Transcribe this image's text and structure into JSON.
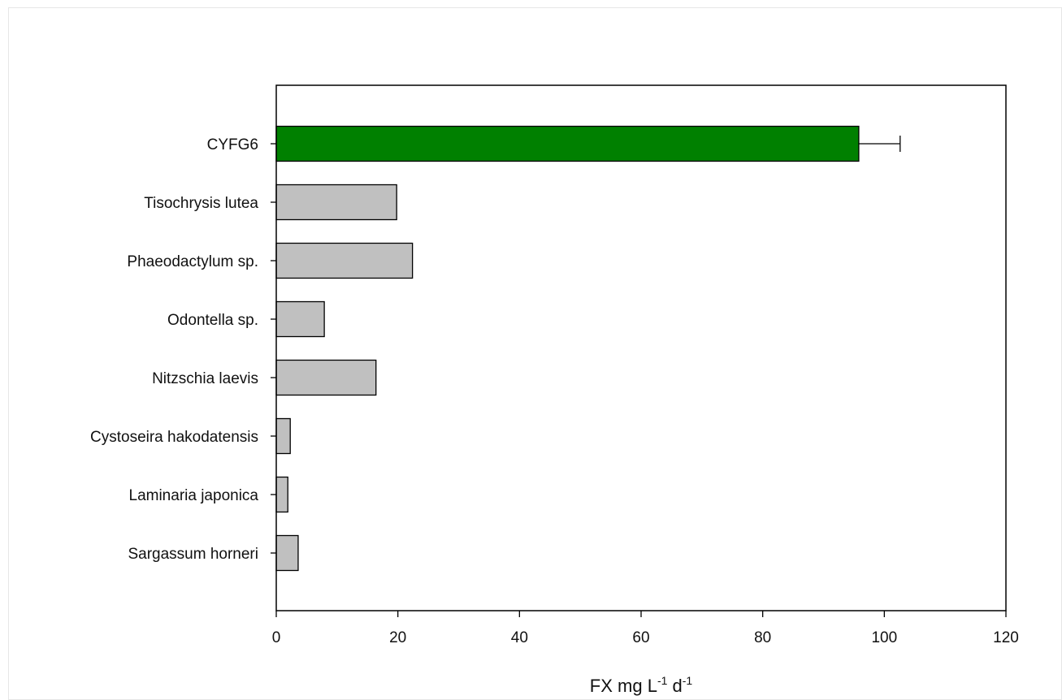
{
  "chart_data": {
    "type": "bar",
    "orientation": "horizontal",
    "categories": [
      "CYFG6",
      "Tisochrysis lutea",
      "Phaeodactylum sp.",
      "Odontella sp.",
      "Nitzschia laevis",
      "Cystoseira hakodatensis",
      "Laminaria japonica",
      "Sargassum horneri"
    ],
    "values": [
      95.8,
      19.8,
      22.4,
      7.9,
      16.4,
      2.3,
      1.9,
      3.6
    ],
    "errors": [
      6.8,
      null,
      null,
      null,
      null,
      null,
      null,
      null
    ],
    "bar_colors": [
      "#008000",
      "#c0c0c0",
      "#c0c0c0",
      "#c0c0c0",
      "#c0c0c0",
      "#c0c0c0",
      "#c0c0c0",
      "#c0c0c0"
    ],
    "xlabel": {
      "main": "FX mg L",
      "exp1": "-1",
      "mid": " d",
      "exp2": "-1"
    },
    "xlim": [
      0,
      120
    ],
    "xticks": [
      0,
      20,
      40,
      60,
      80,
      100,
      120
    ],
    "ylabel": "",
    "title": "",
    "grid": false,
    "legend": false
  }
}
